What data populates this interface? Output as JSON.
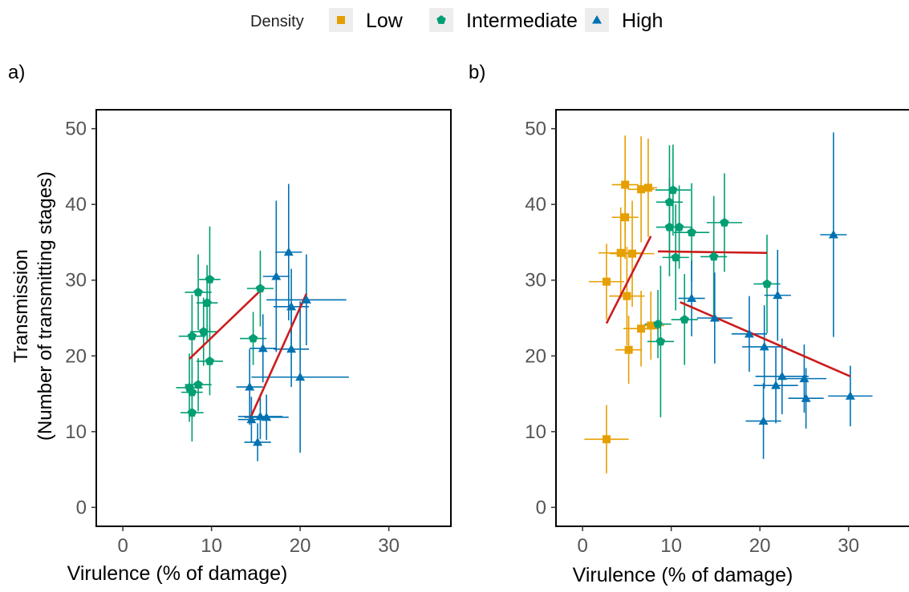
{
  "legend": {
    "title": "Density",
    "placement": "top-center",
    "entries": [
      {
        "label": "Low",
        "color": "#E69F00",
        "shape": "square"
      },
      {
        "label": "Intermediate",
        "color": "#009E73",
        "shape": "circle"
      },
      {
        "label": "High",
        "color": "#0072B2",
        "shape": "triangle"
      }
    ]
  },
  "colors": {
    "fit_line": "#CC1C1C",
    "low": "#E69F00",
    "intermediate": "#009E73",
    "high": "#0072B2"
  },
  "chart_data": [
    {
      "panel_label": "a)",
      "type": "scatter",
      "xlabel": "Virulence (% of damage)",
      "ylabel_lines": [
        "Transmission",
        "(Number of transmitting stages)"
      ],
      "xlim": [
        -3,
        37
      ],
      "ylim": [
        -2.5,
        52.5
      ],
      "xticks": [
        0,
        10,
        20,
        30
      ],
      "yticks": [
        0,
        10,
        20,
        30,
        40,
        50
      ],
      "grid": false,
      "series": [
        {
          "name": "Intermediate",
          "points": [
            {
              "x": 7.5,
              "y": 15.8,
              "xerr": 1.5,
              "yerr": 4.5
            },
            {
              "x": 7.8,
              "y": 15.2,
              "xerr": 1.2,
              "yerr": 3.5
            },
            {
              "x": 7.8,
              "y": 12.5,
              "xerr": 1.3,
              "yerr": 3.8
            },
            {
              "x": 8.5,
              "y": 16.2,
              "xerr": 1.5,
              "yerr": 3.5
            },
            {
              "x": 7.8,
              "y": 22.6,
              "xerr": 1.5,
              "yerr": 5.5
            },
            {
              "x": 8.5,
              "y": 28.4,
              "xerr": 1.5,
              "yerr": 5.0
            },
            {
              "x": 9.1,
              "y": 23.2,
              "xerr": 1.5,
              "yerr": 4.5
            },
            {
              "x": 9.5,
              "y": 27.0,
              "xerr": 1.2,
              "yerr": 5.0
            },
            {
              "x": 9.8,
              "y": 30.1,
              "xerr": 1.2,
              "yerr": 7.0
            },
            {
              "x": 9.8,
              "y": 19.3,
              "xerr": 1.5,
              "yerr": 4.5
            },
            {
              "x": 14.7,
              "y": 22.3,
              "xerr": 1.5,
              "yerr": 3.5
            },
            {
              "x": 15.5,
              "y": 28.9,
              "xerr": 1.5,
              "yerr": 5.0
            }
          ]
        },
        {
          "name": "High",
          "points": [
            {
              "x": 14.3,
              "y": 15.9,
              "xerr": 1.5,
              "yerr": 5.0
            },
            {
              "x": 14.5,
              "y": 11.6,
              "xerr": 1.5,
              "yerr": 3.0
            },
            {
              "x": 15.2,
              "y": 8.6,
              "xerr": 1.5,
              "yerr": 2.5
            },
            {
              "x": 15.5,
              "y": 12.0,
              "xerr": 2.5,
              "yerr": 3.0
            },
            {
              "x": 15.8,
              "y": 21.0,
              "xerr": 1.5,
              "yerr": 4.5
            },
            {
              "x": 16.2,
              "y": 11.9,
              "xerr": 2.5,
              "yerr": 3.0
            },
            {
              "x": 17.3,
              "y": 30.5,
              "xerr": 1.5,
              "yerr": 10.0
            },
            {
              "x": 18.7,
              "y": 33.7,
              "xerr": 1.5,
              "yerr": 9.0
            },
            {
              "x": 19.0,
              "y": 20.9,
              "xerr": 2.0,
              "yerr": 5.0
            },
            {
              "x": 19.0,
              "y": 26.5,
              "xerr": 2.0,
              "yerr": 5.0
            },
            {
              "x": 20.0,
              "y": 17.2,
              "xerr": 5.5,
              "yerr": 10.0
            },
            {
              "x": 20.7,
              "y": 27.4,
              "xerr": 4.5,
              "yerr": 6.0
            }
          ]
        }
      ],
      "fit_lines": [
        {
          "series": "Intermediate",
          "x": [
            7.5,
            15.5
          ],
          "y": [
            19.6,
            28.6
          ]
        },
        {
          "series": "High",
          "x": [
            14.3,
            20.7
          ],
          "y": [
            11.6,
            28.2
          ]
        }
      ]
    },
    {
      "panel_label": "b)",
      "type": "scatter",
      "xlabel": "Virulence (% of damage)",
      "ylabel_lines": [],
      "xlim": [
        -3,
        37
      ],
      "ylim": [
        -2.5,
        52.5
      ],
      "xticks": [
        0,
        10,
        20,
        30
      ],
      "yticks": [
        0,
        10,
        20,
        30,
        40,
        50
      ],
      "grid": false,
      "series": [
        {
          "name": "Low",
          "points": [
            {
              "x": 2.7,
              "y": 9.0,
              "xerr": 2.5,
              "yerr": 4.5
            },
            {
              "x": 2.7,
              "y": 29.8,
              "xerr": 2.0,
              "yerr": 5.0
            },
            {
              "x": 4.3,
              "y": 33.6,
              "xerr": 2.5,
              "yerr": 6.0
            },
            {
              "x": 4.8,
              "y": 42.6,
              "xerr": 1.5,
              "yerr": 6.5
            },
            {
              "x": 4.8,
              "y": 38.3,
              "xerr": 1.5,
              "yerr": 5.5
            },
            {
              "x": 5.0,
              "y": 27.9,
              "xerr": 2.0,
              "yerr": 6.5
            },
            {
              "x": 5.2,
              "y": 20.8,
              "xerr": 1.5,
              "yerr": 4.5
            },
            {
              "x": 5.6,
              "y": 33.5,
              "xerr": 2.5,
              "yerr": 7.0
            },
            {
              "x": 6.6,
              "y": 42.0,
              "xerr": 1.5,
              "yerr": 7.0
            },
            {
              "x": 6.6,
              "y": 23.6,
              "xerr": 2.0,
              "yerr": 5.0
            },
            {
              "x": 7.4,
              "y": 42.2,
              "xerr": 1.0,
              "yerr": 6.5
            },
            {
              "x": 7.7,
              "y": 24.0,
              "xerr": 1.5,
              "yerr": 4.5
            }
          ]
        },
        {
          "name": "Intermediate",
          "points": [
            {
              "x": 8.8,
              "y": 21.9,
              "xerr": 1.5,
              "yerr": 10.0
            },
            {
              "x": 8.5,
              "y": 24.2,
              "xerr": 1.5,
              "yerr": 4.5
            },
            {
              "x": 9.8,
              "y": 40.3,
              "xerr": 1.5,
              "yerr": 7.5
            },
            {
              "x": 9.8,
              "y": 37.0,
              "xerr": 1.5,
              "yerr": 6.5
            },
            {
              "x": 10.2,
              "y": 41.9,
              "xerr": 2.0,
              "yerr": 6.0
            },
            {
              "x": 10.5,
              "y": 33.0,
              "xerr": 1.5,
              "yerr": 7.0
            },
            {
              "x": 10.9,
              "y": 37.0,
              "xerr": 1.5,
              "yerr": 5.5
            },
            {
              "x": 11.5,
              "y": 24.8,
              "xerr": 1.5,
              "yerr": 6.0
            },
            {
              "x": 12.3,
              "y": 36.3,
              "xerr": 2.0,
              "yerr": 6.5
            },
            {
              "x": 14.8,
              "y": 33.1,
              "xerr": 1.5,
              "yerr": 8.0
            },
            {
              "x": 16.0,
              "y": 37.6,
              "xerr": 2.0,
              "yerr": 6.5
            },
            {
              "x": 20.8,
              "y": 29.5,
              "xerr": 1.5,
              "yerr": 6.5
            }
          ]
        },
        {
          "name": "High",
          "points": [
            {
              "x": 12.3,
              "y": 27.6,
              "xerr": 1.5,
              "yerr": 5.0
            },
            {
              "x": 14.9,
              "y": 25.0,
              "xerr": 2.0,
              "yerr": 6.0
            },
            {
              "x": 18.8,
              "y": 22.9,
              "xerr": 2.0,
              "yerr": 5.0
            },
            {
              "x": 20.4,
              "y": 11.4,
              "xerr": 2.0,
              "yerr": 5.0
            },
            {
              "x": 20.5,
              "y": 21.2,
              "xerr": 2.5,
              "yerr": 5.5
            },
            {
              "x": 21.8,
              "y": 16.1,
              "xerr": 2.5,
              "yerr": 5.0
            },
            {
              "x": 22.0,
              "y": 28.0,
              "xerr": 1.5,
              "yerr": 6.0
            },
            {
              "x": 22.5,
              "y": 17.3,
              "xerr": 3.0,
              "yerr": 5.0
            },
            {
              "x": 25.0,
              "y": 17.0,
              "xerr": 2.5,
              "yerr": 4.5
            },
            {
              "x": 25.2,
              "y": 14.4,
              "xerr": 2.0,
              "yerr": 4.0
            },
            {
              "x": 28.3,
              "y": 36.0,
              "xerr": 1.5,
              "yerr": 13.5
            },
            {
              "x": 30.2,
              "y": 14.7,
              "xerr": 2.5,
              "yerr": 4.0
            }
          ]
        }
      ],
      "fit_lines": [
        {
          "series": "Low",
          "x": [
            2.7,
            7.7
          ],
          "y": [
            24.3,
            35.8
          ]
        },
        {
          "series": "Intermediate",
          "x": [
            8.5,
            20.8
          ],
          "y": [
            33.8,
            33.6
          ]
        },
        {
          "series": "High",
          "x": [
            11.0,
            30.2
          ],
          "y": [
            27.1,
            17.3
          ]
        }
      ]
    }
  ]
}
